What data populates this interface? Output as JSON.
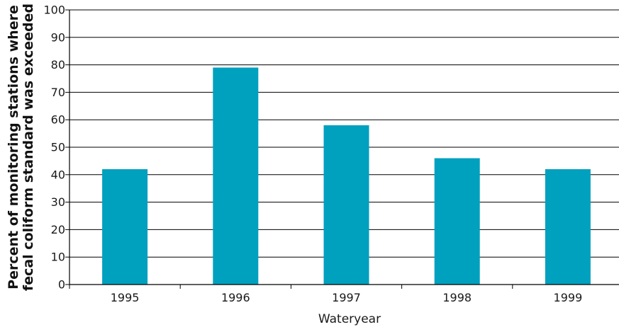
{
  "chart_data": {
    "type": "bar",
    "title": "",
    "categories": [
      "1995",
      "1996",
      "1997",
      "1998",
      "1999"
    ],
    "values": [
      42,
      79,
      58,
      46,
      42
    ],
    "xlabel": "Wateryear",
    "ylabel_lines": [
      "Percent of monitoring stations where",
      "fecal coliform standard was exceeded"
    ],
    "ylim": [
      0,
      100
    ],
    "yticks": [
      "0",
      "10",
      "20",
      "30",
      "40",
      "50",
      "60",
      "70",
      "80",
      "90",
      "100"
    ],
    "grid": true,
    "legend": "none",
    "colors": {
      "bar": "#00a0bf",
      "grid": "#000000",
      "axis": "#000000"
    }
  }
}
